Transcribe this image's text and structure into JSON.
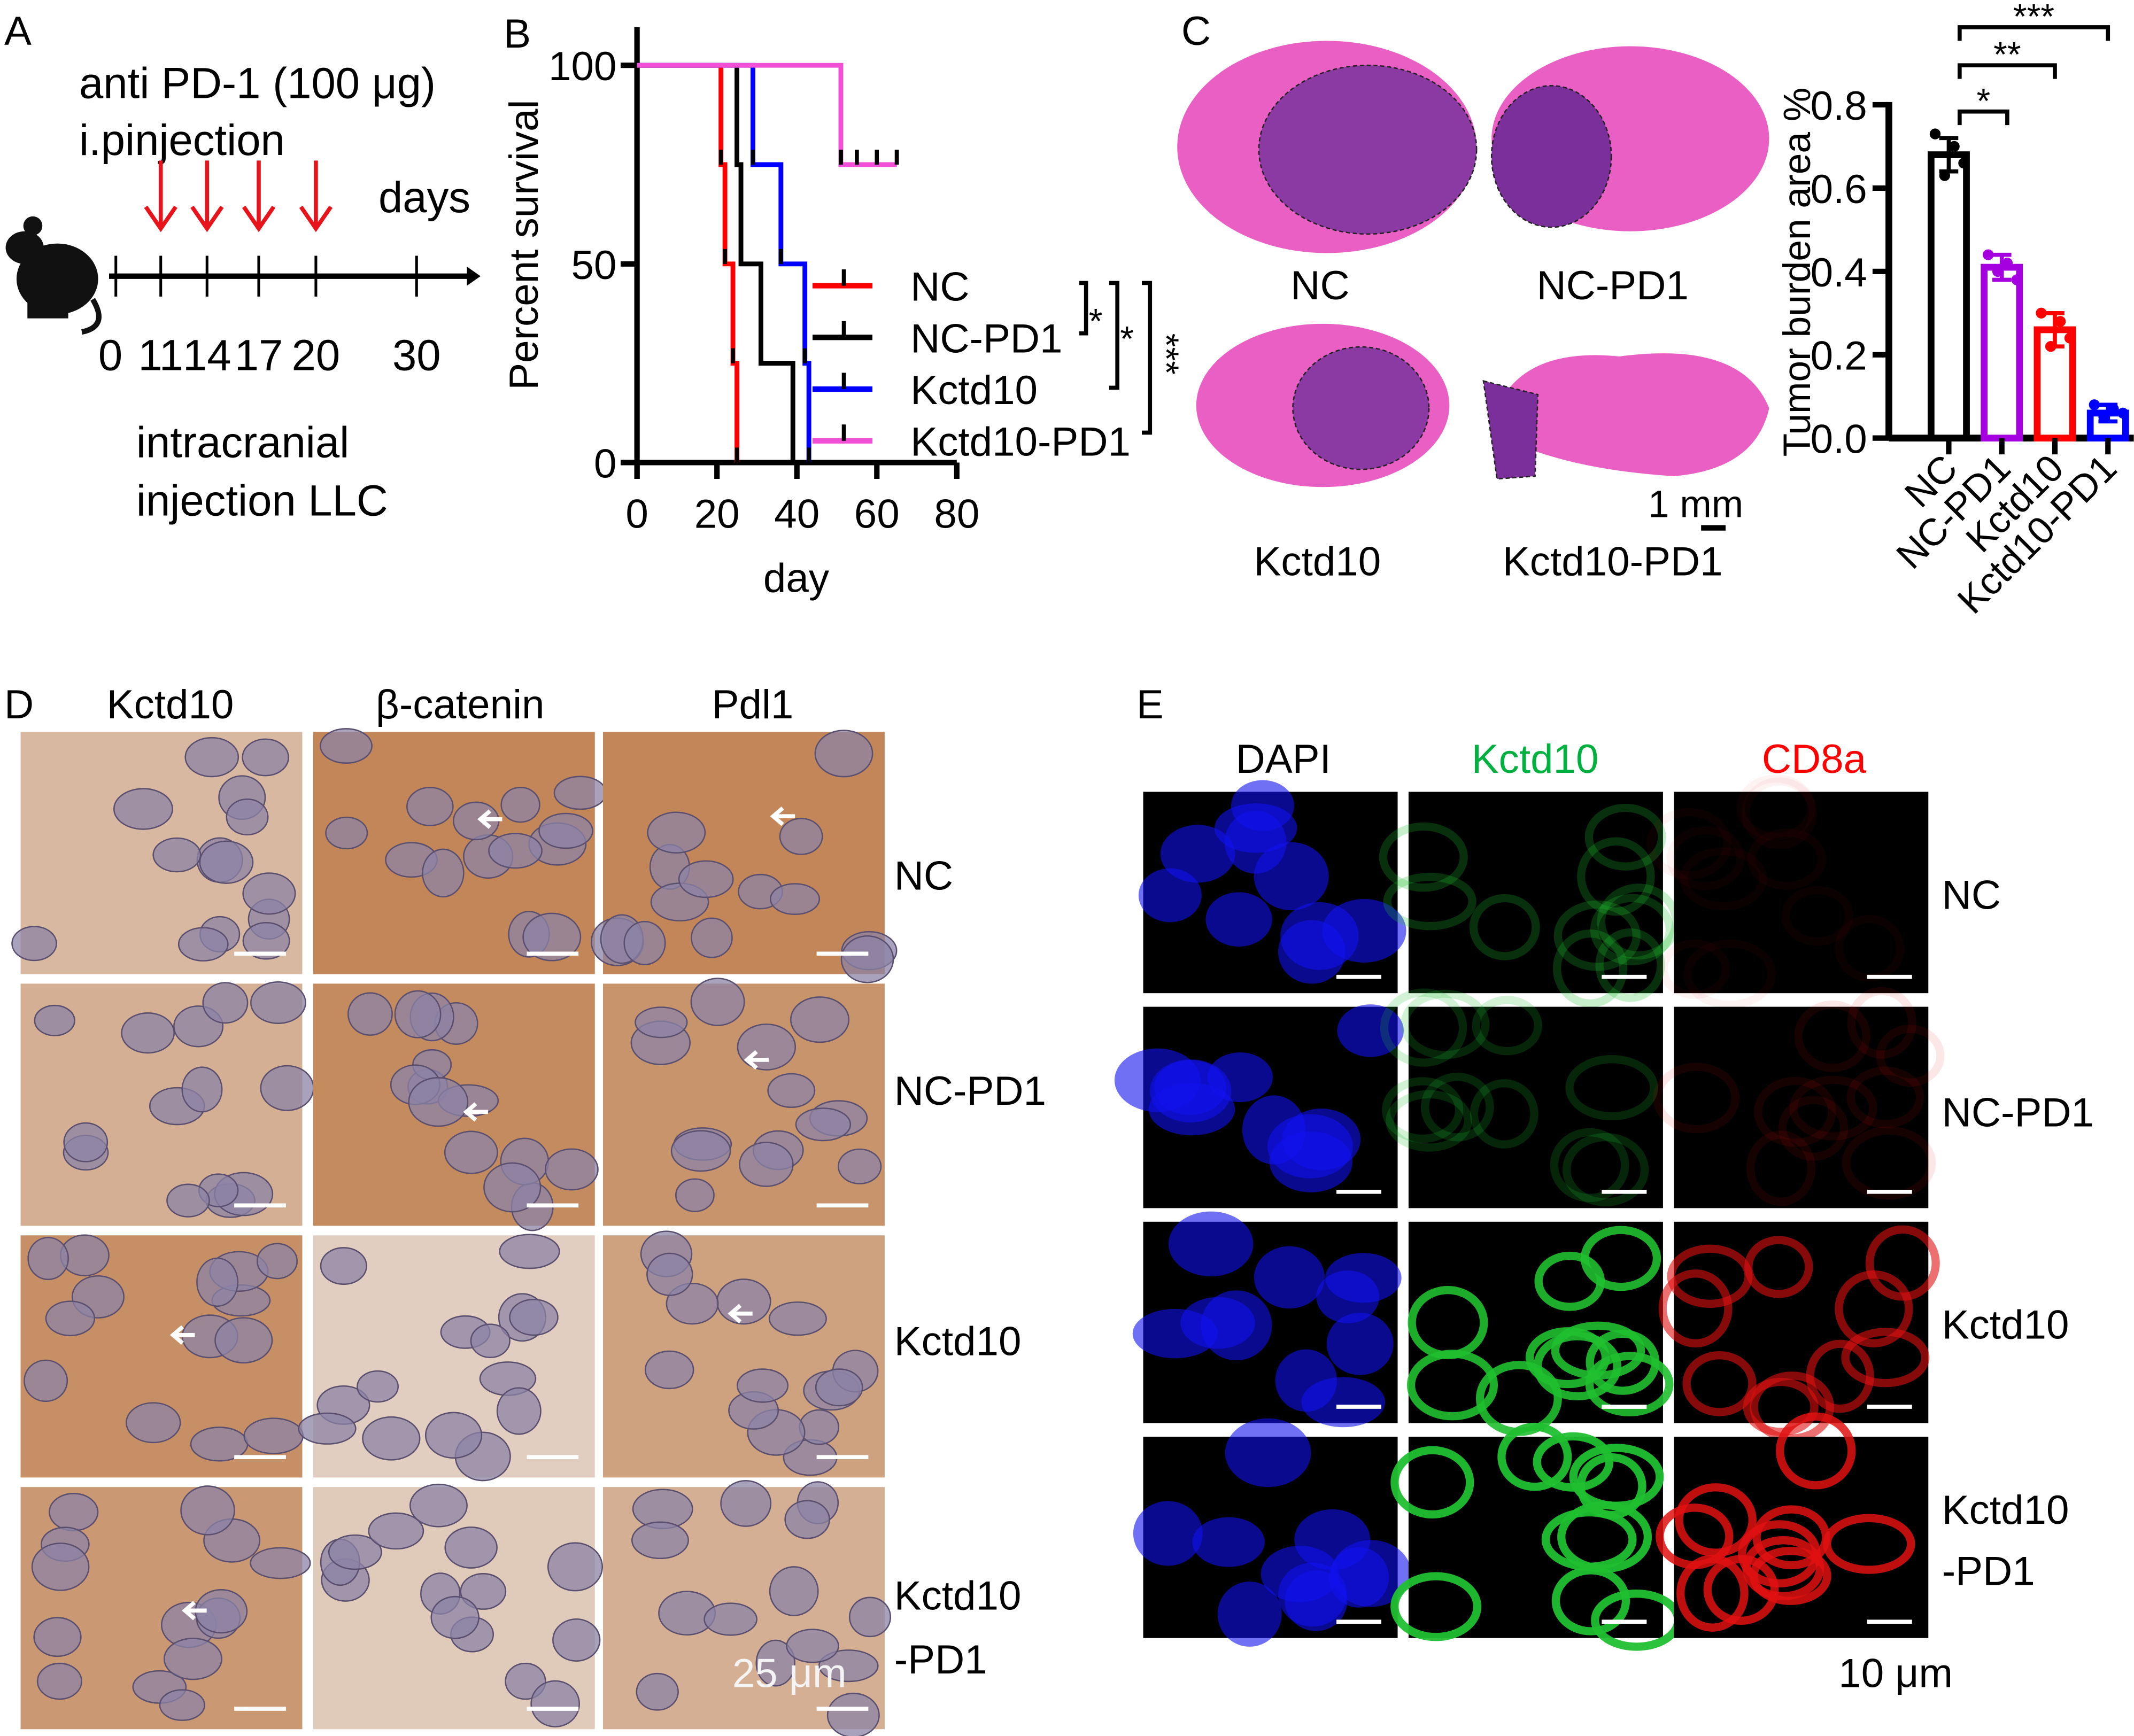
{
  "panel_letters": {
    "a": "A",
    "b": "B",
    "c": "C",
    "d": "D",
    "e": "E"
  },
  "panel_a": {
    "line1": "anti PD-1 (100 μg)",
    "line2": "i.pinjection",
    "days_label": "days",
    "ticks": [
      "0",
      "11",
      "14",
      "17",
      "20",
      "30"
    ],
    "bottom1": "intracranial",
    "bottom2": "injection LLC",
    "arrow_color": "#e8141b",
    "icon": "mouse-icon"
  },
  "chart_data": [
    {
      "type": "line",
      "subtype": "kaplan-meier",
      "xlabel": "day",
      "ylabel": "Percent survival",
      "xlim": [
        0,
        80
      ],
      "ylim": [
        0,
        100
      ],
      "xticks": [
        "0",
        "20",
        "40",
        "60",
        "80"
      ],
      "yticks": [
        "0",
        "50",
        "100"
      ],
      "legend": "right",
      "series": [
        {
          "name": "NC",
          "color": "#ff0000",
          "steps": [
            [
              0,
              100
            ],
            [
              21,
              75
            ],
            [
              22,
              50
            ],
            [
              24,
              25
            ],
            [
              25,
              0
            ]
          ],
          "censored": []
        },
        {
          "name": "NC-PD1",
          "color": "#000000",
          "steps": [
            [
              0,
              100
            ],
            [
              25,
              75
            ],
            [
              26,
              50
            ],
            [
              31,
              25
            ],
            [
              39,
              0
            ]
          ],
          "censored": []
        },
        {
          "name": "Kctd10",
          "color": "#0000ff",
          "steps": [
            [
              0,
              100
            ],
            [
              29,
              75
            ],
            [
              36,
              50
            ],
            [
              42,
              25
            ],
            [
              43,
              0
            ]
          ],
          "censored": []
        },
        {
          "name": "Kctd10-PD1",
          "color": "#f04fd6",
          "steps": [
            [
              0,
              100
            ],
            [
              51,
              75
            ],
            [
              65,
              75
            ]
          ],
          "censored": [
            51,
            55,
            60,
            65
          ]
        }
      ],
      "significance": [
        "*",
        "*",
        "***"
      ]
    },
    {
      "type": "bar",
      "ylabel": "Tumor burden area %",
      "ylim": [
        0,
        0.8
      ],
      "yticks": [
        "0.0",
        "0.2",
        "0.4",
        "0.6",
        "0.8"
      ],
      "categories": [
        "NC",
        "NC-PD1",
        "Kctd10",
        "Kctd10-PD1"
      ],
      "values": [
        0.68,
        0.41,
        0.26,
        0.06
      ],
      "errors": [
        0.04,
        0.03,
        0.04,
        0.02
      ],
      "points": [
        [
          0.73,
          0.63,
          0.7,
          0.66
        ],
        [
          0.44,
          0.4,
          0.42,
          0.38
        ],
        [
          0.3,
          0.22,
          0.28,
          0.24
        ],
        [
          0.08,
          0.05,
          0.07,
          0.06
        ]
      ],
      "colors": [
        "#000000",
        "#a400e0",
        "#ff0000",
        "#0000ff"
      ],
      "significance": [
        {
          "from": "NC",
          "to": "NC-PD1",
          "label": "*"
        },
        {
          "from": "NC",
          "to": "Kctd10",
          "label": "**"
        },
        {
          "from": "NC",
          "to": "Kctd10-PD1",
          "label": "***"
        }
      ]
    }
  ],
  "panel_c": {
    "labels": [
      "NC",
      "NC-PD1",
      "Kctd10",
      "Kctd10-PD1"
    ],
    "scale": "1 mm"
  },
  "panel_d": {
    "columns": [
      "Kctd10",
      "β-catenin",
      "Pdl1"
    ],
    "rows": [
      "NC",
      "NC-PD1",
      "Kctd10",
      "Kctd10\n-PD1"
    ],
    "row_last_1": "Kctd10",
    "row_last_2": "-PD1",
    "scale": "25 μm"
  },
  "panel_e": {
    "columns": [
      "DAPI",
      "Kctd10",
      "CD8a"
    ],
    "column_colors": [
      "#000000",
      "#00b140",
      "#ff0000"
    ],
    "rows": [
      "NC",
      "NC-PD1",
      "Kctd10"
    ],
    "row_last_1": "Kctd10",
    "row_last_2": "-PD1",
    "scale": "10 μm"
  }
}
